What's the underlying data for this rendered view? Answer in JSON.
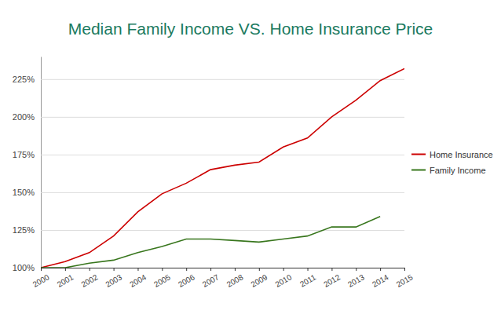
{
  "chart_data": {
    "type": "line",
    "title": "Median Family Income VS. Home Insurance Price",
    "x": [
      2000,
      2001,
      2002,
      2003,
      2004,
      2005,
      2006,
      2007,
      2008,
      2009,
      2010,
      2011,
      2012,
      2013,
      2014,
      2015
    ],
    "series": [
      {
        "name": "Home Insurance",
        "color": "#cc0000",
        "values": [
          100,
          104,
          110,
          121,
          137,
          149,
          156,
          165,
          168,
          170,
          180,
          186,
          200,
          211,
          224,
          232
        ]
      },
      {
        "name": "Family Income",
        "color": "#38761d",
        "values": [
          100,
          100,
          103,
          105,
          110,
          114,
          119,
          119,
          118,
          117,
          119,
          121,
          127,
          127,
          134,
          null
        ]
      }
    ],
    "xlim": [
      2000,
      2015
    ],
    "xticks": [
      2000,
      2001,
      2002,
      2003,
      2004,
      2005,
      2006,
      2007,
      2008,
      2009,
      2010,
      2011,
      2012,
      2013,
      2014,
      2015
    ],
    "ylim": [
      100,
      240
    ],
    "yticks": [
      {
        "value": 100,
        "label": "100%"
      },
      {
        "value": 125,
        "label": "125%"
      },
      {
        "value": 150,
        "label": "150%"
      },
      {
        "value": 175,
        "label": "175%"
      },
      {
        "value": 200,
        "label": "200%"
      },
      {
        "value": 225,
        "label": "225%"
      }
    ],
    "grid": true,
    "legend": "right"
  }
}
